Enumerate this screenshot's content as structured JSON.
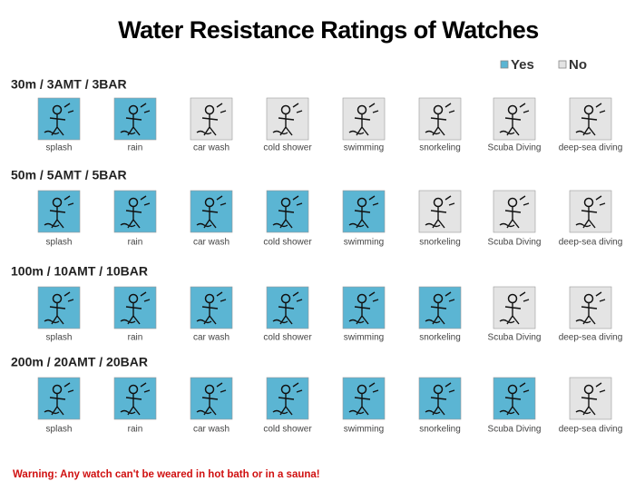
{
  "title": "Water Resistance Ratings of Watches",
  "legend": [
    {
      "label": "Yes",
      "color": "#5bb5d3"
    },
    {
      "label": "No",
      "color": "#e4e4e4"
    }
  ],
  "activities": [
    "splash",
    "rain",
    "car wash",
    "cold shower",
    "swimming",
    "snorkeling",
    "Scuba Diving",
    "deep-sea diving"
  ],
  "rows": [
    {
      "label": "30m / 3AMT / 3BAR",
      "ratings": [
        "Yes",
        "Yes",
        "No",
        "No",
        "No",
        "No",
        "No",
        "No"
      ]
    },
    {
      "label": "50m / 5AMT / 5BAR",
      "ratings": [
        "Yes",
        "Yes",
        "Yes",
        "Yes",
        "Yes",
        "No",
        "No",
        "No"
      ]
    },
    {
      "label": "100m / 10AMT / 10BAR",
      "ratings": [
        "Yes",
        "Yes",
        "Yes",
        "Yes",
        "Yes",
        "Yes",
        "No",
        "No"
      ]
    },
    {
      "label": "200m / 20AMT / 20BAR",
      "ratings": [
        "Yes",
        "Yes",
        "Yes",
        "Yes",
        "Yes",
        "Yes",
        "Yes",
        "No"
      ]
    }
  ],
  "warning": "Warning: Any watch can't be weared in hot bath or in a sauna!"
}
